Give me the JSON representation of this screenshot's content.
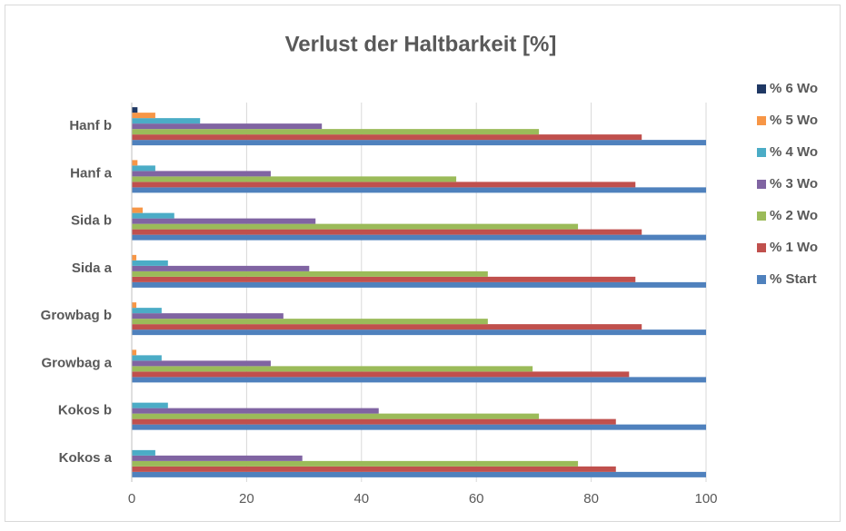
{
  "chart_data": {
    "type": "bar",
    "orientation": "horizontal",
    "title": "Verlust der Haltbarkeit [%]",
    "categories": [
      "Kokos a",
      "Kokos b",
      "Growbag a",
      "Growbag b",
      "Sida a",
      "Sida b",
      "Hanf a",
      "Hanf b"
    ],
    "series": [
      {
        "name": "% Start",
        "color": "#4f81bd",
        "values": [
          100,
          100,
          100,
          100,
          100,
          100,
          100,
          100
        ]
      },
      {
        "name": "% 1 Wo",
        "color": "#c0504d",
        "values": [
          84.3,
          84.3,
          86.6,
          88.8,
          87.7,
          88.8,
          87.7,
          88.8
        ]
      },
      {
        "name": "% 2 Wo",
        "color": "#9bbb59",
        "values": [
          77.7,
          70.9,
          69.8,
          62,
          62,
          77.7,
          56.5,
          70.9
        ]
      },
      {
        "name": "% 3 Wo",
        "color": "#8064a2",
        "values": [
          29.7,
          43,
          24.2,
          26.4,
          30.9,
          32,
          24.2,
          33.1
        ]
      },
      {
        "name": "% 4 Wo",
        "color": "#4bacc6",
        "values": [
          4.1,
          6.3,
          5.2,
          5.2,
          6.3,
          7.4,
          4.1,
          11.9
        ]
      },
      {
        "name": "% 5 Wo",
        "color": "#f79646",
        "values": [
          0,
          0,
          0.8,
          0.8,
          0.8,
          1.9,
          1,
          4.1
        ]
      },
      {
        "name": "% 6 Wo",
        "color": "#1f3864",
        "values": [
          0,
          0,
          0,
          0,
          0,
          0,
          0,
          1
        ]
      }
    ],
    "xlim": [
      0,
      100
    ],
    "xticks": [
      0,
      20,
      40,
      60,
      80,
      100
    ],
    "grid": true,
    "legend": "right"
  }
}
